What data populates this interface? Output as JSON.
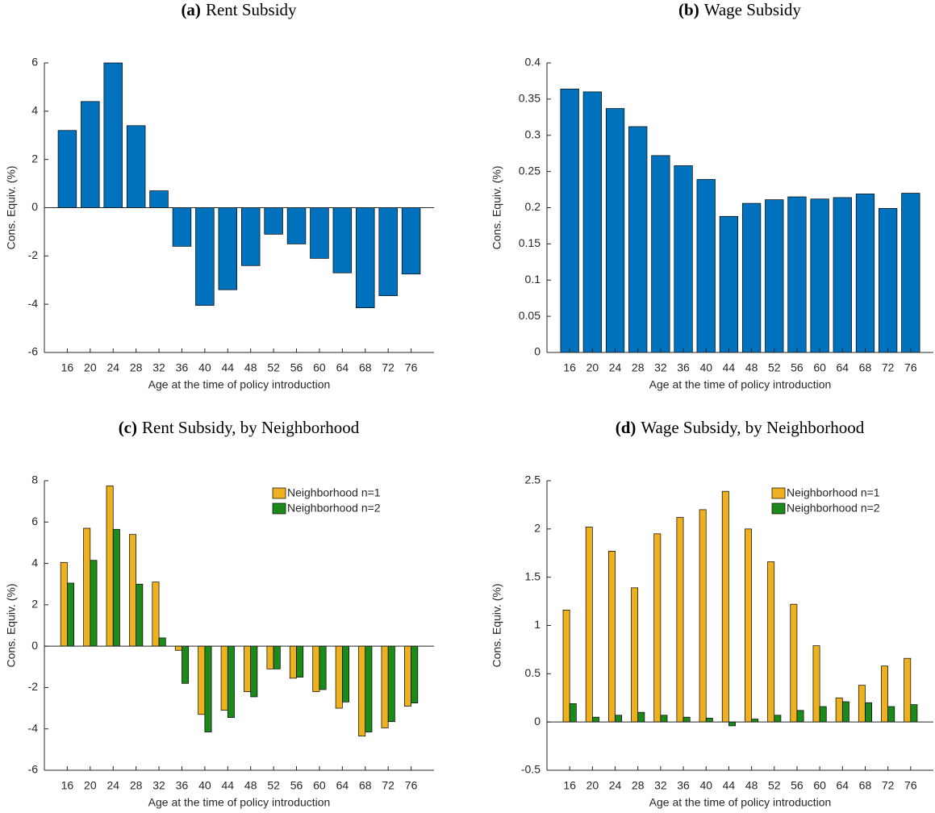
{
  "chart_data": [
    {
      "type": "bar",
      "panel_label": "(a)",
      "title": "Rent Subsidy",
      "xlabel": "Age at the time of policy introduction",
      "ylabel": "Cons. Equiv. (%)",
      "categories": [
        "16",
        "20",
        "24",
        "28",
        "32",
        "36",
        "40",
        "44",
        "48",
        "52",
        "56",
        "60",
        "64",
        "68",
        "72",
        "76"
      ],
      "values": [
        3.2,
        4.4,
        6.0,
        3.4,
        0.7,
        -1.6,
        -4.05,
        -3.4,
        -2.4,
        -1.1,
        -1.5,
        -2.1,
        -2.7,
        -4.15,
        -3.65,
        -2.75
      ],
      "color": "#0072bd",
      "ylim": [
        -6,
        6
      ],
      "yticks": [
        -6,
        -4,
        -2,
        0,
        2,
        4,
        6
      ]
    },
    {
      "type": "bar",
      "panel_label": "(b)",
      "title": "Wage Subsidy",
      "xlabel": "Age at the time of policy introduction",
      "ylabel": "Cons. Equiv. (%)",
      "categories": [
        "16",
        "20",
        "24",
        "28",
        "32",
        "36",
        "40",
        "44",
        "48",
        "52",
        "56",
        "60",
        "64",
        "68",
        "72",
        "76"
      ],
      "values": [
        0.364,
        0.36,
        0.337,
        0.312,
        0.272,
        0.258,
        0.239,
        0.188,
        0.206,
        0.211,
        0.215,
        0.212,
        0.214,
        0.219,
        0.199,
        0.22
      ],
      "color": "#0072bd",
      "ylim": [
        0,
        0.4
      ],
      "yticks": [
        0,
        0.05,
        0.1,
        0.15,
        0.2,
        0.25,
        0.3,
        0.35,
        0.4
      ]
    },
    {
      "type": "grouped-bar",
      "panel_label": "(c)",
      "title": "Rent Subsidy, by Neighborhood",
      "xlabel": "Age at the time of policy introduction",
      "ylabel": "Cons. Equiv. (%)",
      "categories": [
        "16",
        "20",
        "24",
        "28",
        "32",
        "36",
        "40",
        "44",
        "48",
        "52",
        "56",
        "60",
        "64",
        "68",
        "72",
        "76"
      ],
      "series": [
        {
          "name": "Neighborhood n=1",
          "color": "#edb120",
          "values": [
            4.05,
            5.7,
            7.75,
            5.4,
            3.1,
            -0.2,
            -3.3,
            -3.1,
            -2.2,
            -1.1,
            -1.55,
            -2.2,
            -3.0,
            -4.35,
            -3.95,
            -2.9
          ]
        },
        {
          "name": "Neighborhood n=2",
          "color": "#1b8a1b",
          "values": [
            3.05,
            4.15,
            5.65,
            3.0,
            0.4,
            -1.8,
            -4.15,
            -3.45,
            -2.45,
            -1.1,
            -1.5,
            -2.1,
            -2.7,
            -4.15,
            -3.65,
            -2.75
          ]
        }
      ],
      "legend": "northeast",
      "ylim": [
        -6,
        8
      ],
      "yticks": [
        -6,
        -4,
        -2,
        0,
        2,
        4,
        6,
        8
      ]
    },
    {
      "type": "grouped-bar",
      "panel_label": "(d)",
      "title": "Wage Subsidy, by Neighborhood",
      "xlabel": "Age at the time of policy introduction",
      "ylabel": "Cons. Equiv. (%)",
      "categories": [
        "16",
        "20",
        "24",
        "28",
        "32",
        "36",
        "40",
        "44",
        "48",
        "52",
        "56",
        "60",
        "64",
        "68",
        "72",
        "76"
      ],
      "series": [
        {
          "name": "Neighborhood n=1",
          "color": "#edb120",
          "values": [
            1.16,
            2.02,
            1.77,
            1.39,
            1.95,
            2.12,
            2.2,
            2.39,
            2.0,
            1.66,
            1.22,
            0.79,
            0.25,
            0.38,
            0.58,
            0.66
          ]
        },
        {
          "name": "Neighborhood n=2",
          "color": "#1b8a1b",
          "values": [
            0.19,
            0.05,
            0.07,
            0.1,
            0.07,
            0.05,
            0.04,
            -0.04,
            0.03,
            0.07,
            0.12,
            0.16,
            0.21,
            0.2,
            0.16,
            0.18
          ]
        }
      ],
      "legend": "northeast",
      "ylim": [
        -0.5,
        2.5
      ],
      "yticks": [
        -0.5,
        0,
        0.5,
        1,
        1.5,
        2,
        2.5
      ]
    }
  ]
}
